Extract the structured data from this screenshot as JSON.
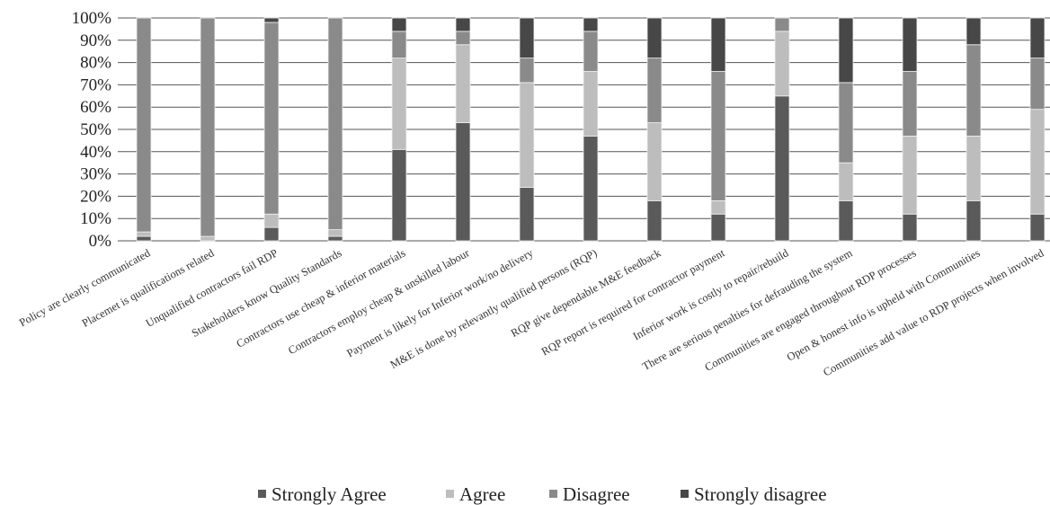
{
  "chart_data": {
    "type": "bar",
    "stacked": true,
    "normalized": true,
    "title": "",
    "xlabel": "",
    "ylabel": "",
    "ylim": [
      0,
      100
    ],
    "ytick_labels": [
      "0%",
      "10%",
      "20%",
      "30%",
      "40%",
      "50%",
      "60%",
      "70%",
      "80%",
      "90%",
      "100%"
    ],
    "grid": true,
    "legend_position": "bottom",
    "categories": [
      "Policy are clearly communicated",
      "Placemet  is qualifications related",
      "Unqualified contractors fail RDP",
      "Stakeholders know Quality Standards",
      "Contractors use cheap & inferior materials",
      "Contractors employ cheap & unskilled labour",
      "Payment is likely for Inferior work/no delivery",
      "M&E is done by relevantly qualified persons (RQP)",
      "RQP give dependable M&E feedback",
      "RQP report is required for contractor payment",
      "Inferior work is costly to repair/rebuild",
      "There are serious penalties for defrauding the system",
      "Communities are engaged throughout RDP processes",
      "Open & honest info is upheld with Communities",
      "Communities add value to RDP projects when involved"
    ],
    "series": [
      {
        "name": "Strongly Agree",
        "color": "#5a5a5a",
        "values": [
          2,
          0,
          6,
          2,
          41,
          53,
          24,
          47,
          18,
          12,
          65,
          18,
          12,
          18,
          12
        ]
      },
      {
        "name": "Agree",
        "color": "#bdbdbd",
        "values": [
          2,
          2,
          6,
          3,
          41,
          35,
          47,
          29,
          35,
          6,
          29,
          17,
          35,
          29,
          47
        ]
      },
      {
        "name": "Disagree",
        "color": "#8a8a8a",
        "values": [
          96,
          98,
          86,
          95,
          12,
          6,
          11,
          18,
          29,
          58,
          6,
          36,
          29,
          41,
          23
        ]
      },
      {
        "name": "Strongly disagree",
        "color": "#474747",
        "values": [
          0,
          0,
          2,
          0,
          6,
          6,
          18,
          6,
          18,
          24,
          0,
          29,
          24,
          12,
          18
        ]
      }
    ]
  }
}
